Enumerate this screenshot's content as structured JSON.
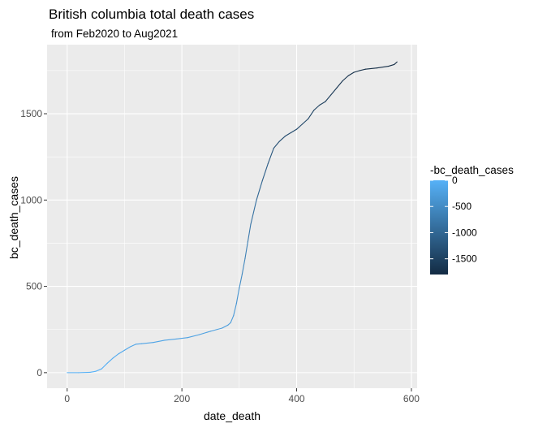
{
  "chart_data": {
    "type": "line",
    "title": "British columbia total death cases",
    "subtitle": "from Feb2020 to Aug2021",
    "xlabel": "date_death",
    "ylabel": "bc_death_cases",
    "xlim": [
      -35,
      610
    ],
    "ylim": [
      -90,
      1900
    ],
    "x_ticks": [
      0,
      200,
      400,
      600
    ],
    "y_ticks": [
      0,
      500,
      1000,
      1500
    ],
    "x_tick_labels": [
      "0",
      "200",
      "400",
      "600"
    ],
    "y_tick_labels": [
      "0",
      "500",
      "1000",
      "1500"
    ],
    "grid": true,
    "legend": {
      "title": "-bc_death_cases",
      "placement": "right",
      "range": [
        -1800,
        0
      ],
      "ticks": [
        0,
        -500,
        -1000,
        -1500
      ],
      "tick_labels": [
        "0",
        "-500",
        "-1000",
        "-1500"
      ],
      "color_high": "#56B1F7",
      "color_low": "#132B43"
    },
    "series": [
      {
        "x": [
          0,
          20,
          40,
          50,
          60,
          70,
          80,
          90,
          100,
          110,
          120,
          130,
          150,
          170,
          190,
          210,
          230,
          250,
          270,
          280,
          285,
          290,
          295,
          300,
          305,
          310,
          315,
          320,
          330,
          340,
          350,
          360,
          370,
          380,
          390,
          400,
          410,
          420,
          430,
          440,
          450,
          460,
          470,
          480,
          490,
          500,
          510,
          520,
          540,
          560,
          570,
          575
        ],
        "y": [
          0,
          0,
          2,
          8,
          22,
          55,
          85,
          110,
          130,
          150,
          165,
          168,
          175,
          188,
          195,
          203,
          220,
          240,
          258,
          275,
          290,
          330,
          400,
          490,
          570,
          660,
          760,
          860,
          1000,
          1110,
          1210,
          1300,
          1340,
          1370,
          1390,
          1410,
          1440,
          1470,
          1520,
          1550,
          1570,
          1610,
          1650,
          1690,
          1720,
          1740,
          1750,
          1758,
          1765,
          1775,
          1785,
          1800
        ]
      }
    ]
  }
}
